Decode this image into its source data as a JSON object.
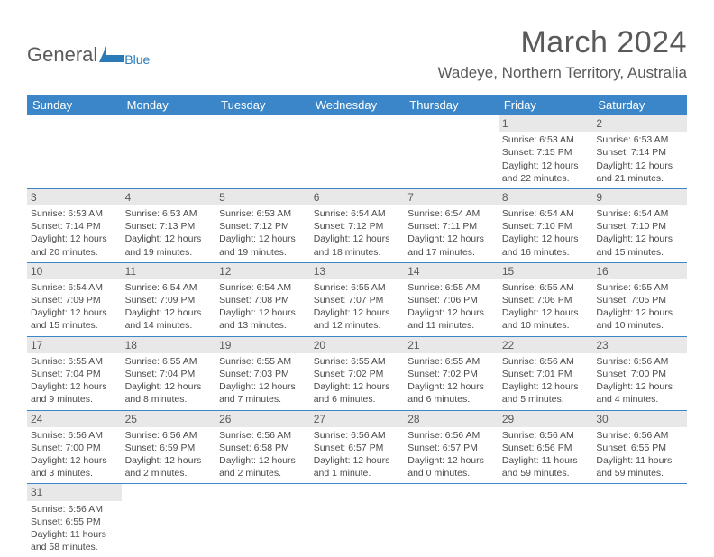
{
  "logo": {
    "text1": "General",
    "text2": "Blue"
  },
  "title": "March 2024",
  "location": "Wadeye, Northern Territory, Australia",
  "colors": {
    "header_bg": "#3a86c8",
    "header_text": "#ffffff",
    "daynum_bg": "#e8e8e8",
    "text": "#5a5a5a",
    "cell_text": "#4a4a4a",
    "row_border": "#3a86c8",
    "logo_blue": "#2a7ab8"
  },
  "typography": {
    "title_fontsize": 34,
    "location_fontsize": 17,
    "header_fontsize": 13,
    "daynum_fontsize": 12,
    "cell_fontsize": 10.5
  },
  "days_of_week": [
    "Sunday",
    "Monday",
    "Tuesday",
    "Wednesday",
    "Thursday",
    "Friday",
    "Saturday"
  ],
  "weeks": [
    [
      {
        "n": "",
        "lines": []
      },
      {
        "n": "",
        "lines": []
      },
      {
        "n": "",
        "lines": []
      },
      {
        "n": "",
        "lines": []
      },
      {
        "n": "",
        "lines": []
      },
      {
        "n": "1",
        "lines": [
          "Sunrise: 6:53 AM",
          "Sunset: 7:15 PM",
          "Daylight: 12 hours",
          "and 22 minutes."
        ]
      },
      {
        "n": "2",
        "lines": [
          "Sunrise: 6:53 AM",
          "Sunset: 7:14 PM",
          "Daylight: 12 hours",
          "and 21 minutes."
        ]
      }
    ],
    [
      {
        "n": "3",
        "lines": [
          "Sunrise: 6:53 AM",
          "Sunset: 7:14 PM",
          "Daylight: 12 hours",
          "and 20 minutes."
        ]
      },
      {
        "n": "4",
        "lines": [
          "Sunrise: 6:53 AM",
          "Sunset: 7:13 PM",
          "Daylight: 12 hours",
          "and 19 minutes."
        ]
      },
      {
        "n": "5",
        "lines": [
          "Sunrise: 6:53 AM",
          "Sunset: 7:12 PM",
          "Daylight: 12 hours",
          "and 19 minutes."
        ]
      },
      {
        "n": "6",
        "lines": [
          "Sunrise: 6:54 AM",
          "Sunset: 7:12 PM",
          "Daylight: 12 hours",
          "and 18 minutes."
        ]
      },
      {
        "n": "7",
        "lines": [
          "Sunrise: 6:54 AM",
          "Sunset: 7:11 PM",
          "Daylight: 12 hours",
          "and 17 minutes."
        ]
      },
      {
        "n": "8",
        "lines": [
          "Sunrise: 6:54 AM",
          "Sunset: 7:10 PM",
          "Daylight: 12 hours",
          "and 16 minutes."
        ]
      },
      {
        "n": "9",
        "lines": [
          "Sunrise: 6:54 AM",
          "Sunset: 7:10 PM",
          "Daylight: 12 hours",
          "and 15 minutes."
        ]
      }
    ],
    [
      {
        "n": "10",
        "lines": [
          "Sunrise: 6:54 AM",
          "Sunset: 7:09 PM",
          "Daylight: 12 hours",
          "and 15 minutes."
        ]
      },
      {
        "n": "11",
        "lines": [
          "Sunrise: 6:54 AM",
          "Sunset: 7:09 PM",
          "Daylight: 12 hours",
          "and 14 minutes."
        ]
      },
      {
        "n": "12",
        "lines": [
          "Sunrise: 6:54 AM",
          "Sunset: 7:08 PM",
          "Daylight: 12 hours",
          "and 13 minutes."
        ]
      },
      {
        "n": "13",
        "lines": [
          "Sunrise: 6:55 AM",
          "Sunset: 7:07 PM",
          "Daylight: 12 hours",
          "and 12 minutes."
        ]
      },
      {
        "n": "14",
        "lines": [
          "Sunrise: 6:55 AM",
          "Sunset: 7:06 PM",
          "Daylight: 12 hours",
          "and 11 minutes."
        ]
      },
      {
        "n": "15",
        "lines": [
          "Sunrise: 6:55 AM",
          "Sunset: 7:06 PM",
          "Daylight: 12 hours",
          "and 10 minutes."
        ]
      },
      {
        "n": "16",
        "lines": [
          "Sunrise: 6:55 AM",
          "Sunset: 7:05 PM",
          "Daylight: 12 hours",
          "and 10 minutes."
        ]
      }
    ],
    [
      {
        "n": "17",
        "lines": [
          "Sunrise: 6:55 AM",
          "Sunset: 7:04 PM",
          "Daylight: 12 hours",
          "and 9 minutes."
        ]
      },
      {
        "n": "18",
        "lines": [
          "Sunrise: 6:55 AM",
          "Sunset: 7:04 PM",
          "Daylight: 12 hours",
          "and 8 minutes."
        ]
      },
      {
        "n": "19",
        "lines": [
          "Sunrise: 6:55 AM",
          "Sunset: 7:03 PM",
          "Daylight: 12 hours",
          "and 7 minutes."
        ]
      },
      {
        "n": "20",
        "lines": [
          "Sunrise: 6:55 AM",
          "Sunset: 7:02 PM",
          "Daylight: 12 hours",
          "and 6 minutes."
        ]
      },
      {
        "n": "21",
        "lines": [
          "Sunrise: 6:55 AM",
          "Sunset: 7:02 PM",
          "Daylight: 12 hours",
          "and 6 minutes."
        ]
      },
      {
        "n": "22",
        "lines": [
          "Sunrise: 6:56 AM",
          "Sunset: 7:01 PM",
          "Daylight: 12 hours",
          "and 5 minutes."
        ]
      },
      {
        "n": "23",
        "lines": [
          "Sunrise: 6:56 AM",
          "Sunset: 7:00 PM",
          "Daylight: 12 hours",
          "and 4 minutes."
        ]
      }
    ],
    [
      {
        "n": "24",
        "lines": [
          "Sunrise: 6:56 AM",
          "Sunset: 7:00 PM",
          "Daylight: 12 hours",
          "and 3 minutes."
        ]
      },
      {
        "n": "25",
        "lines": [
          "Sunrise: 6:56 AM",
          "Sunset: 6:59 PM",
          "Daylight: 12 hours",
          "and 2 minutes."
        ]
      },
      {
        "n": "26",
        "lines": [
          "Sunrise: 6:56 AM",
          "Sunset: 6:58 PM",
          "Daylight: 12 hours",
          "and 2 minutes."
        ]
      },
      {
        "n": "27",
        "lines": [
          "Sunrise: 6:56 AM",
          "Sunset: 6:57 PM",
          "Daylight: 12 hours",
          "and 1 minute."
        ]
      },
      {
        "n": "28",
        "lines": [
          "Sunrise: 6:56 AM",
          "Sunset: 6:57 PM",
          "Daylight: 12 hours",
          "and 0 minutes."
        ]
      },
      {
        "n": "29",
        "lines": [
          "Sunrise: 6:56 AM",
          "Sunset: 6:56 PM",
          "Daylight: 11 hours",
          "and 59 minutes."
        ]
      },
      {
        "n": "30",
        "lines": [
          "Sunrise: 6:56 AM",
          "Sunset: 6:55 PM",
          "Daylight: 11 hours",
          "and 59 minutes."
        ]
      }
    ],
    [
      {
        "n": "31",
        "lines": [
          "Sunrise: 6:56 AM",
          "Sunset: 6:55 PM",
          "Daylight: 11 hours",
          "and 58 minutes."
        ]
      },
      {
        "n": "",
        "lines": []
      },
      {
        "n": "",
        "lines": []
      },
      {
        "n": "",
        "lines": []
      },
      {
        "n": "",
        "lines": []
      },
      {
        "n": "",
        "lines": []
      },
      {
        "n": "",
        "lines": []
      }
    ]
  ]
}
